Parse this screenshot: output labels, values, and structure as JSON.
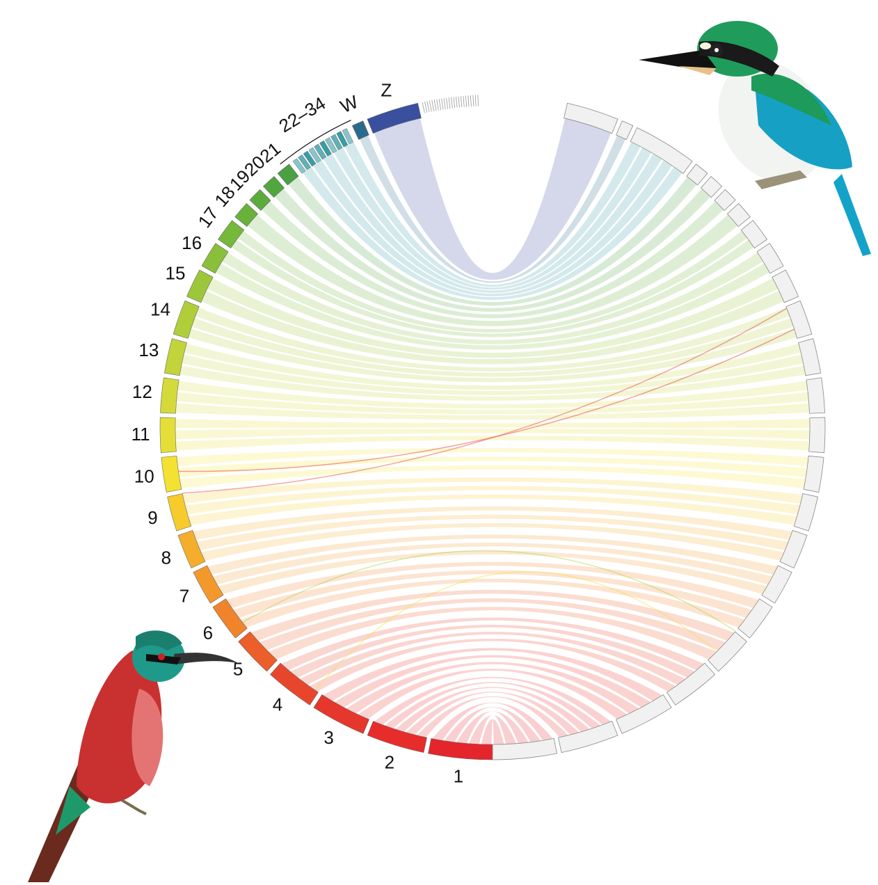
{
  "chromosomes": [
    {
      "label": "1",
      "color": "#e4262c"
    },
    {
      "label": "2",
      "color": "#e62d2c"
    },
    {
      "label": "3",
      "color": "#e6372c"
    },
    {
      "label": "4",
      "color": "#e8462c"
    },
    {
      "label": "5",
      "color": "#ec5e2a"
    },
    {
      "label": "6",
      "color": "#f0842c"
    },
    {
      "label": "7",
      "color": "#f3992c"
    },
    {
      "label": "8",
      "color": "#f5ae2c"
    },
    {
      "label": "9",
      "color": "#f7cb2c"
    },
    {
      "label": "10",
      "color": "#f4e232"
    },
    {
      "label": "11",
      "color": "#e4df38"
    },
    {
      "label": "12",
      "color": "#d4da3a"
    },
    {
      "label": "13",
      "color": "#c2d43a"
    },
    {
      "label": "14",
      "color": "#b0ce3a"
    },
    {
      "label": "15",
      "color": "#9dc73a"
    },
    {
      "label": "16",
      "color": "#89bf3a"
    },
    {
      "label": "17",
      "color": "#76b83a"
    },
    {
      "label": "18",
      "color": "#68b23b"
    },
    {
      "label": "19",
      "color": "#5cac3c"
    },
    {
      "label": "20",
      "color": "#52a63e"
    },
    {
      "label": "21",
      "color": "#4aa042"
    },
    {
      "label": "22–34",
      "color": "#3a9ca4"
    },
    {
      "label": "W",
      "color": "#2a6a8c"
    },
    {
      "label": "Z",
      "color": "#3a4f9e"
    }
  ]
}
